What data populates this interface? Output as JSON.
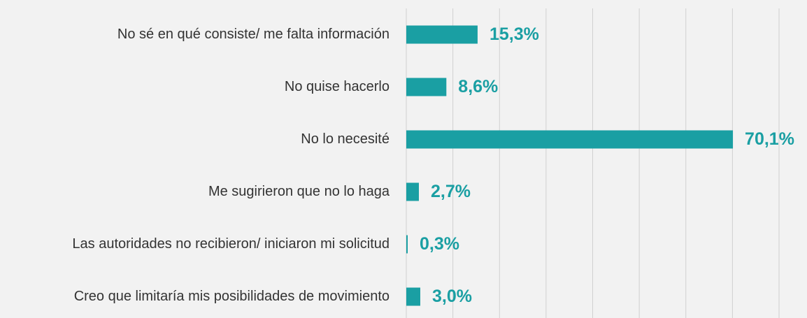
{
  "chart_data": {
    "type": "bar",
    "orientation": "horizontal",
    "categories": [
      "No sé en qué consiste/ me falta información",
      "No quise hacerlo",
      "No lo necesité",
      "Me sugirieron que no lo haga",
      "Las autoridades no recibieron/ iniciaron mi solicitud",
      "Creo que limitaría mis posibilidades de movimiento"
    ],
    "values": [
      15.3,
      8.6,
      70.1,
      2.7,
      0.3,
      3.0
    ],
    "value_labels": [
      "15,3%",
      "8,6%",
      "70,1%",
      "2,7%",
      "0,3%",
      "3,0%"
    ],
    "color": "#1a9fa3",
    "xlim": [
      0,
      86
    ],
    "xticks": [
      0,
      10,
      20,
      30,
      40,
      50,
      60,
      70,
      80
    ],
    "grid": true
  }
}
